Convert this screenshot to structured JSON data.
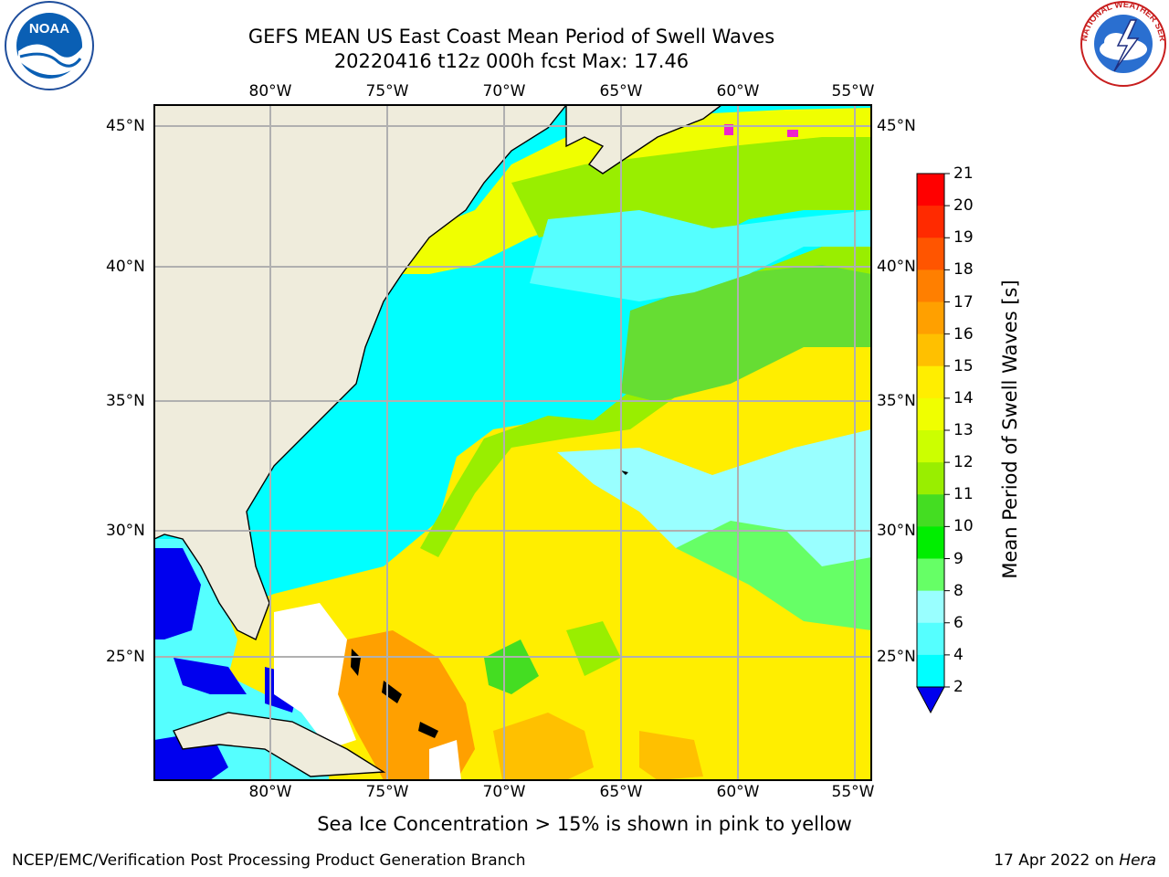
{
  "header": {
    "title_line1": "GEFS MEAN US East Coast Mean Period of Swell Waves",
    "title_line2": "20220416 t12z 000h fcst   Max: 17.46"
  },
  "logos": {
    "left": {
      "icon": "noaa-logo",
      "text": "NOAA"
    },
    "right": {
      "icon": "national-weather-service-logo",
      "text": "NATIONAL WEATHER SERVICE"
    }
  },
  "map": {
    "lon_labels": [
      "80°W",
      "75°W",
      "70°W",
      "65°W",
      "60°W",
      "55°W"
    ],
    "lat_labels": [
      "45°N",
      "40°N",
      "35°N",
      "30°N",
      "25°N"
    ],
    "land_color": "#efecdc",
    "grid_color": "#b0b0b0"
  },
  "colorbar": {
    "label": "Mean Period of Swell Waves [s]",
    "ticks": [
      "21",
      "20",
      "19",
      "18",
      "17",
      "16",
      "15",
      "14",
      "13",
      "12",
      "11",
      "10",
      "9",
      "8",
      "6",
      "4",
      "2"
    ],
    "colors": [
      "#ff0000",
      "#ff2a00",
      "#ff5500",
      "#ff7f00",
      "#ffa000",
      "#ffc000",
      "#ffee00",
      "#f0ff00",
      "#ccff00",
      "#99ee00",
      "#44dd22",
      "#00ee00",
      "#66ff66",
      "#99ffff",
      "#55ffff",
      "#00ffff",
      "#0088ff",
      "#0000ee"
    ]
  },
  "notes": {
    "ice": "Sea Ice Concentration > 15% is shown in pink to yellow"
  },
  "footer": {
    "left": "NCEP/EMC/Verification Post Processing Product Generation Branch",
    "right_prefix": "17 Apr 2022 on ",
    "right_host": "Hera"
  }
}
